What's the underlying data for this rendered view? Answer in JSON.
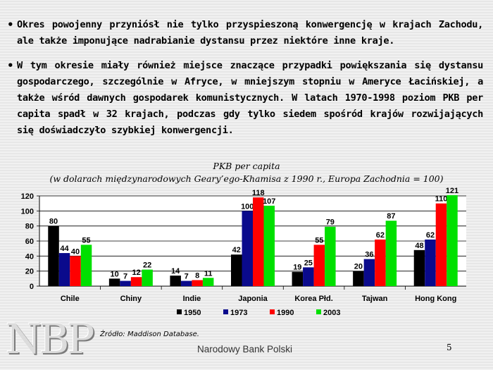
{
  "bullets": [
    "Okres powojenny przyniósł nie tylko przyspieszoną konwergencję w krajach Zachodu, ale także imponujące nadrabianie dystansu przez niektóre inne kraje.",
    "W tym okresie miały również miejsce znaczące przypadki powiększania się dystansu gospodarczego, szczególnie w Afryce, w mniejszym stopniu w Ameryce Łacińskiej, a także wśród dawnych gospodarek komunistycznych. W latach 1970-1998 poziom PKB per capita spadł w 32 krajach, podczas gdy tylko siedem spośród krajów rozwijających się doświadczyło szybkiej konwergencji."
  ],
  "chart_data": {
    "type": "bar",
    "title": "PKB per capita",
    "subtitle": "(w dolarach międzynarodowych Geary’ego-Khamisa z 1990 r., Europa Zachodnia = 100)",
    "categories": [
      "Chile",
      "Chiny",
      "Indie",
      "Japonia",
      "Korea Płd.",
      "Tajwan",
      "Hong Kong"
    ],
    "series": [
      {
        "name": "1950",
        "color": "#000000",
        "values": [
          80,
          10,
          14,
          42,
          19,
          20,
          48
        ]
      },
      {
        "name": "1973",
        "color": "#0a0a8c",
        "values": [
          44,
          7,
          7,
          100,
          25,
          36,
          62
        ]
      },
      {
        "name": "1990",
        "color": "#ff0000",
        "values": [
          40,
          12,
          8,
          118,
          55,
          62,
          110
        ]
      },
      {
        "name": "2003",
        "color": "#00e000",
        "values": [
          55,
          22,
          11,
          107,
          79,
          87,
          121
        ]
      }
    ],
    "ylim": [
      0,
      120
    ],
    "yticks": [
      "0",
      "20",
      "40",
      "60",
      "80",
      "100",
      "120"
    ],
    "grid": true,
    "legend": "bottom"
  },
  "footer": {
    "source": "Źródło: Maddison Database.",
    "bank": "Narodowy Bank Polski",
    "page": "5",
    "logo": "NBP"
  }
}
